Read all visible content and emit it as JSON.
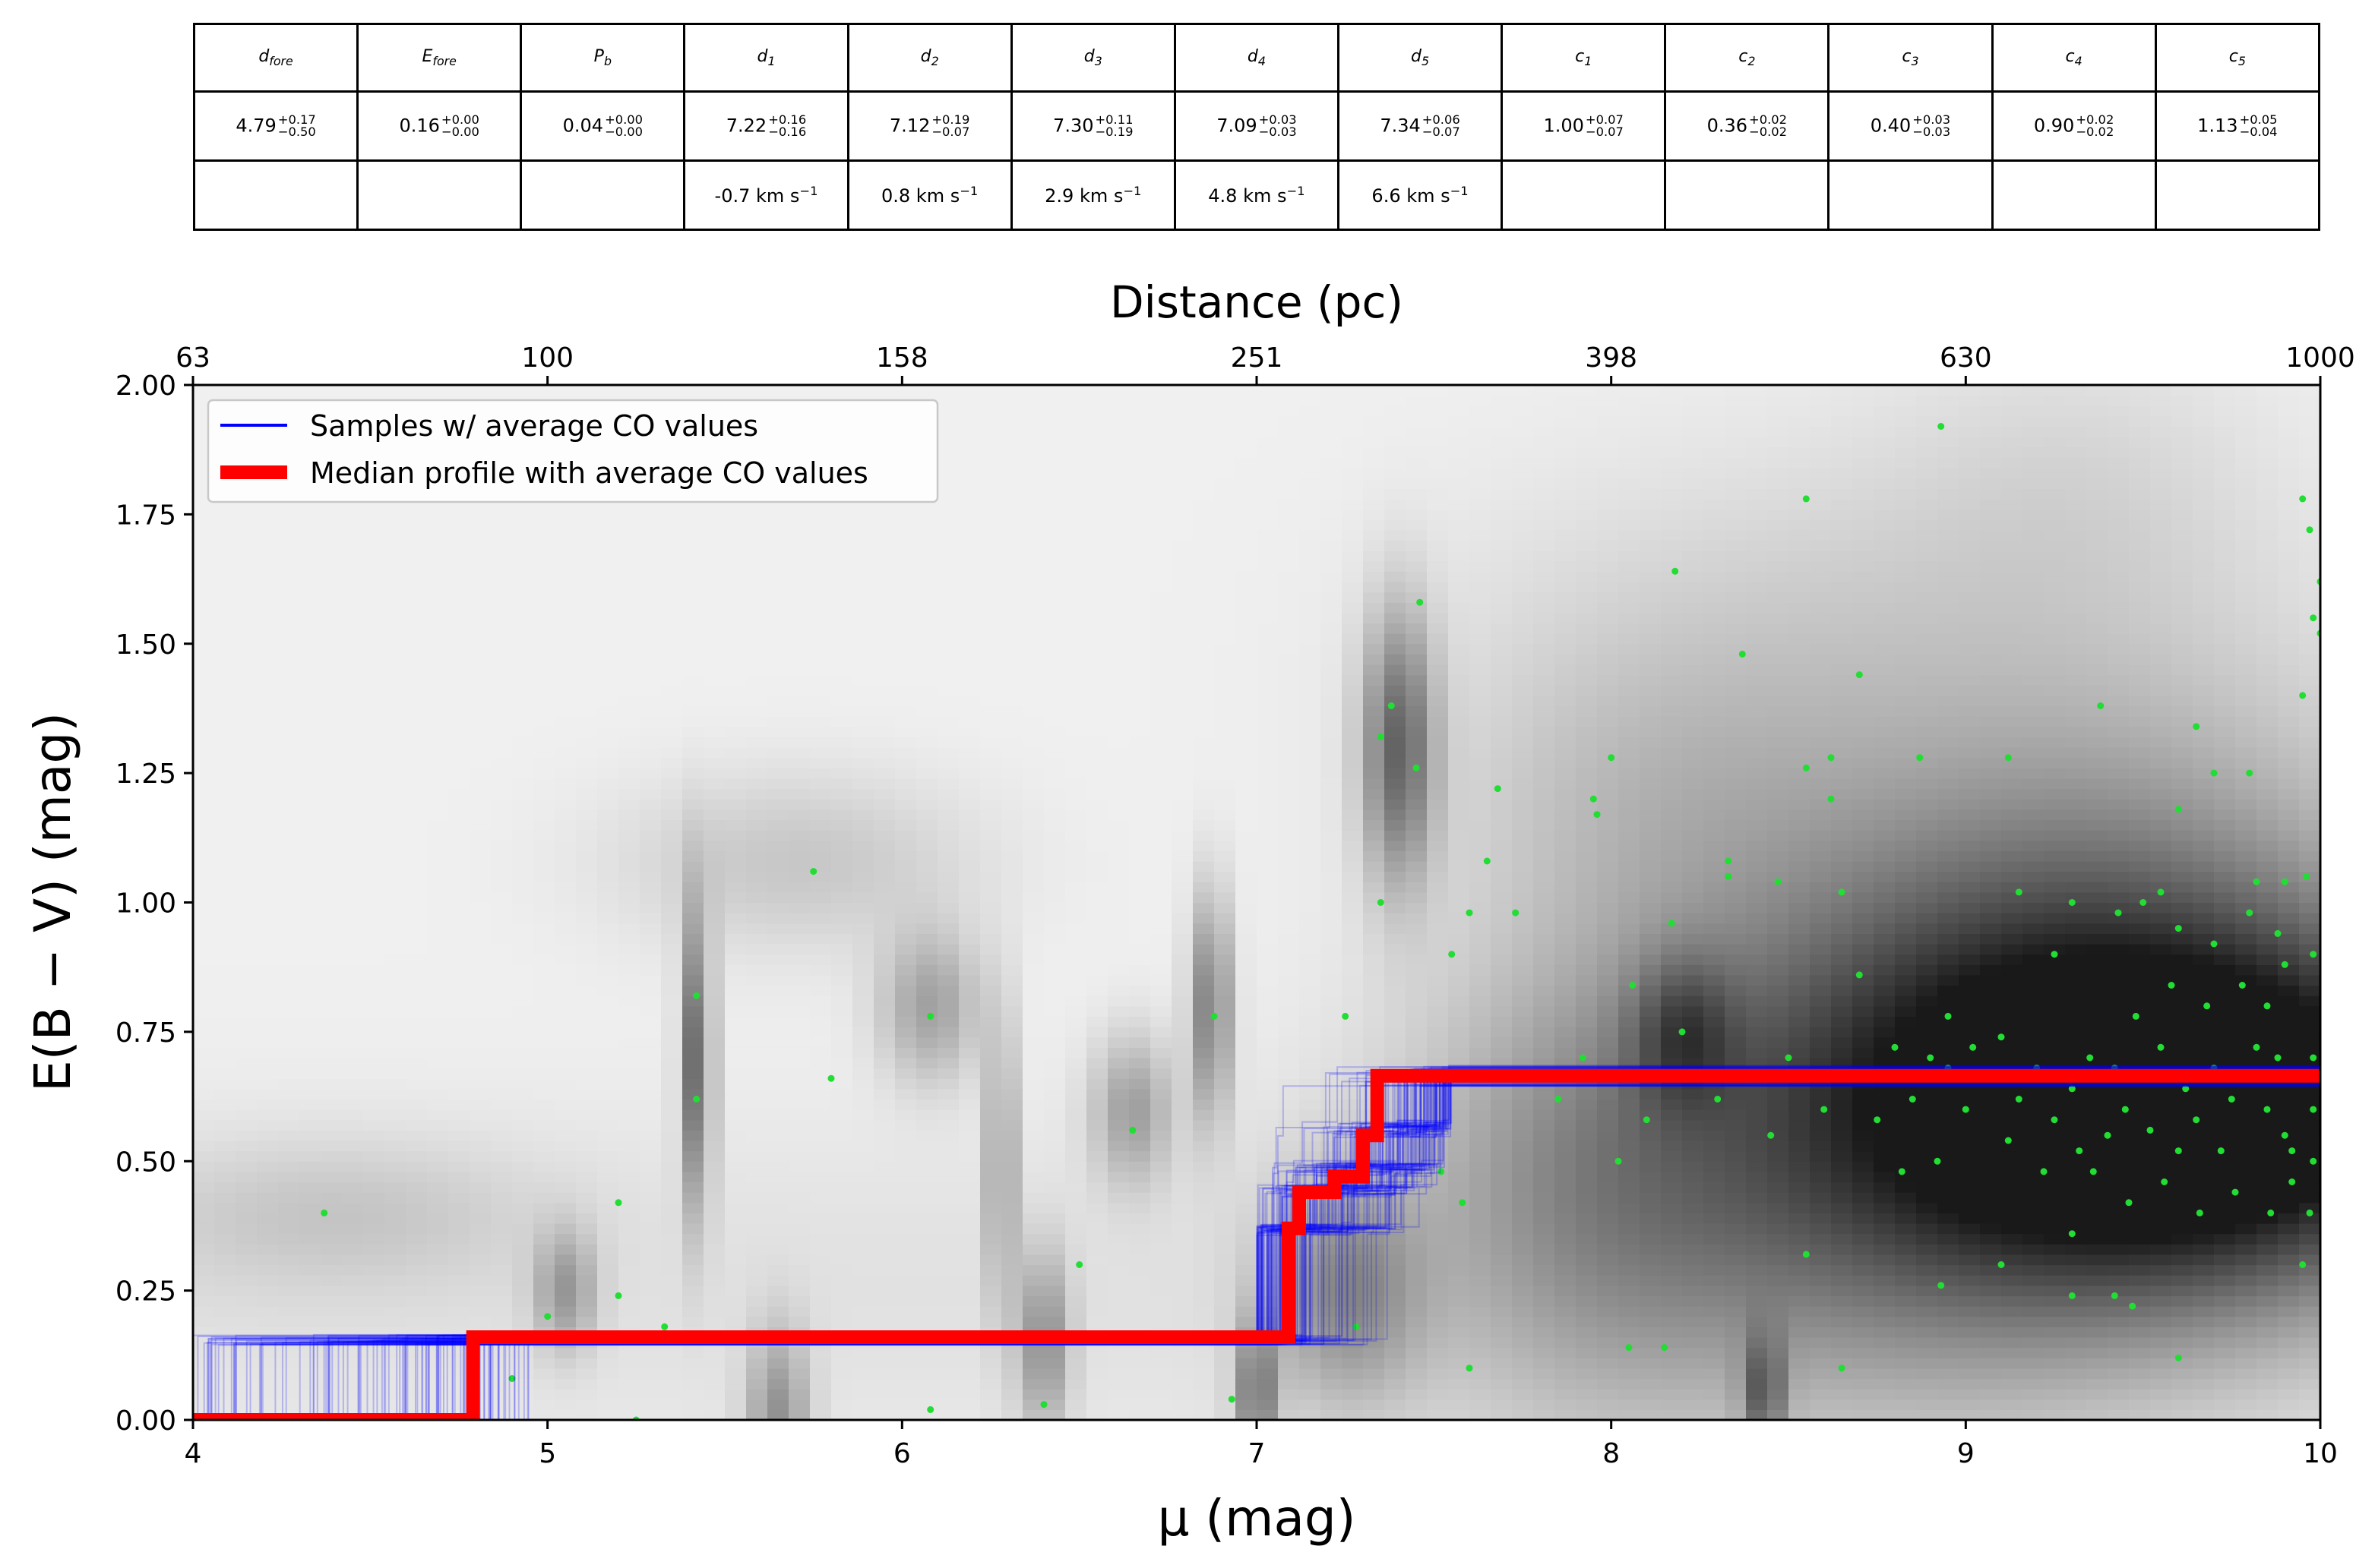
{
  "table": {
    "headers": [
      {
        "base": "d",
        "sub": "fore"
      },
      {
        "base": "E",
        "sub": "fore"
      },
      {
        "base": "P",
        "sub": "b"
      },
      {
        "base": "d",
        "sub": "1"
      },
      {
        "base": "d",
        "sub": "2"
      },
      {
        "base": "d",
        "sub": "3"
      },
      {
        "base": "d",
        "sub": "4"
      },
      {
        "base": "d",
        "sub": "5"
      },
      {
        "base": "c",
        "sub": "1"
      },
      {
        "base": "c",
        "sub": "2"
      },
      {
        "base": "c",
        "sub": "3"
      },
      {
        "base": "c",
        "sub": "4"
      },
      {
        "base": "c",
        "sub": "5"
      }
    ],
    "values": [
      {
        "val": "4.79",
        "plus": "+0.17",
        "minus": "−0.50"
      },
      {
        "val": "0.16",
        "plus": "+0.00",
        "minus": "−0.00"
      },
      {
        "val": "0.04",
        "plus": "+0.00",
        "minus": "−0.00"
      },
      {
        "val": "7.22",
        "plus": "+0.16",
        "minus": "−0.16"
      },
      {
        "val": "7.12",
        "plus": "+0.19",
        "minus": "−0.07"
      },
      {
        "val": "7.30",
        "plus": "+0.11",
        "minus": "−0.19"
      },
      {
        "val": "7.09",
        "plus": "+0.03",
        "minus": "−0.03"
      },
      {
        "val": "7.34",
        "plus": "+0.06",
        "minus": "−0.07"
      },
      {
        "val": "1.00",
        "plus": "+0.07",
        "minus": "−0.07"
      },
      {
        "val": "0.36",
        "plus": "+0.02",
        "minus": "−0.02"
      },
      {
        "val": "0.40",
        "plus": "+0.03",
        "minus": "−0.03"
      },
      {
        "val": "0.90",
        "plus": "+0.02",
        "minus": "−0.02"
      },
      {
        "val": "1.13",
        "plus": "+0.05",
        "minus": "−0.04"
      }
    ],
    "velocities": [
      "",
      "",
      "",
      "-0.7 km s",
      "0.8 km s",
      "2.9 km s",
      "4.8 km s",
      "6.6 km s",
      "",
      "",
      "",
      "",
      ""
    ],
    "velocity_exponent": "−1"
  },
  "chart_data": {
    "type": "line",
    "title": "",
    "xlabel": "μ (mag)",
    "ylabel": "E(B − V) (mag)",
    "xlim": [
      4,
      10
    ],
    "ylim": [
      0,
      2
    ],
    "x_ticks": [
      "4",
      "5",
      "6",
      "7",
      "8",
      "9",
      "10"
    ],
    "y_ticks": [
      "0.00",
      "0.25",
      "0.50",
      "0.75",
      "1.00",
      "1.25",
      "1.50",
      "1.75",
      "2.00"
    ],
    "top_axis": {
      "label": "Distance (pc)",
      "tick_mu": [
        4,
        5,
        6,
        7,
        8,
        9,
        10
      ],
      "tick_labels": [
        "63",
        "100",
        "158",
        "251",
        "398",
        "630",
        "1000"
      ]
    },
    "legend": {
      "position": "top-left",
      "entries": [
        {
          "label": "Samples  w/ average CO values",
          "color": "#0000ff"
        },
        {
          "label": "Median profile with average CO values",
          "color": "#ff0000"
        }
      ]
    },
    "series": [
      {
        "name": "Median profile with average CO values",
        "color": "#ff0000",
        "x": [
          4.0,
          4.79,
          4.79,
          7.09,
          7.09,
          7.12,
          7.12,
          7.22,
          7.22,
          7.3,
          7.3,
          7.34,
          7.34,
          10.0
        ],
        "y": [
          0.0,
          0.0,
          0.16,
          0.16,
          0.37,
          0.37,
          0.44,
          0.44,
          0.47,
          0.47,
          0.55,
          0.55,
          0.665,
          0.665
        ]
      }
    ],
    "samples": {
      "name": "Samples  w/ average CO values",
      "color": "#0000ff",
      "d_fore_range": [
        4.0,
        4.95
      ],
      "e_fore": 0.155,
      "d_range": [
        7.0,
        7.55
      ],
      "e_final": 0.665
    },
    "density_blobs": [
      {
        "mu": 9.75,
        "e": 0.6,
        "smu": 0.55,
        "se": 0.22,
        "w": 0.95
      },
      {
        "mu": 9.2,
        "e": 0.6,
        "smu": 0.6,
        "se": 0.3,
        "w": 0.55
      },
      {
        "mu": 8.6,
        "e": 0.55,
        "smu": 0.6,
        "se": 0.35,
        "w": 0.3
      },
      {
        "mu": 9.4,
        "e": 1.0,
        "smu": 0.6,
        "se": 0.35,
        "w": 0.3
      },
      {
        "mu": 8.2,
        "e": 0.75,
        "smu": 0.1,
        "se": 0.1,
        "w": 0.35
      },
      {
        "mu": 7.95,
        "e": 0.45,
        "smu": 0.35,
        "se": 0.3,
        "w": 0.25
      },
      {
        "mu": 7.4,
        "e": 1.3,
        "smu": 0.07,
        "se": 0.18,
        "w": 0.55
      },
      {
        "mu": 7.25,
        "e": 0.25,
        "smu": 0.15,
        "se": 0.15,
        "w": 0.35
      },
      {
        "mu": 7.0,
        "e": 0.05,
        "smu": 0.04,
        "se": 0.1,
        "w": 0.45
      },
      {
        "mu": 6.87,
        "e": 0.8,
        "smu": 0.04,
        "se": 0.15,
        "w": 0.45
      },
      {
        "mu": 6.65,
        "e": 0.6,
        "smu": 0.08,
        "se": 0.1,
        "w": 0.3
      },
      {
        "mu": 6.28,
        "e": 0.5,
        "smu": 0.02,
        "se": 0.2,
        "w": 0.55
      },
      {
        "mu": 6.4,
        "e": 0.15,
        "smu": 0.05,
        "se": 0.12,
        "w": 0.35
      },
      {
        "mu": 6.08,
        "e": 0.8,
        "smu": 0.1,
        "se": 0.1,
        "w": 0.3
      },
      {
        "mu": 5.42,
        "e": 0.7,
        "smu": 0.03,
        "se": 0.2,
        "w": 0.55
      },
      {
        "mu": 5.7,
        "e": 1.08,
        "smu": 0.35,
        "se": 0.12,
        "w": 0.15
      },
      {
        "mu": 5.65,
        "e": 0.0,
        "smu": 0.06,
        "se": 0.12,
        "w": 0.35
      },
      {
        "mu": 5.05,
        "e": 0.25,
        "smu": 0.06,
        "se": 0.08,
        "w": 0.3
      },
      {
        "mu": 4.4,
        "e": 0.4,
        "smu": 0.4,
        "se": 0.1,
        "w": 0.12
      },
      {
        "mu": 8.43,
        "e": 0.05,
        "smu": 0.04,
        "se": 0.08,
        "w": 0.45
      },
      {
        "mu": 8.1,
        "e": 1.2,
        "smu": 0.4,
        "se": 0.2,
        "w": 0.12
      },
      {
        "mu": 8.4,
        "e": 1.5,
        "smu": 0.6,
        "se": 0.25,
        "w": 0.1
      },
      {
        "mu": 9.3,
        "e": 1.8,
        "smu": 0.4,
        "se": 0.2,
        "w": 0.08
      }
    ],
    "scatter_points": [
      {
        "mu": 5.75,
        "e": 1.06
      },
      {
        "mu": 5.8,
        "e": 0.66
      },
      {
        "mu": 6.08,
        "e": 0.78
      },
      {
        "mu": 5.42,
        "e": 0.82
      },
      {
        "mu": 5.42,
        "e": 0.62
      },
      {
        "mu": 4.37,
        "e": 0.4
      },
      {
        "mu": 5.2,
        "e": 0.42
      },
      {
        "mu": 5.2,
        "e": 0.24
      },
      {
        "mu": 5.0,
        "e": 0.2
      },
      {
        "mu": 5.33,
        "e": 0.18
      },
      {
        "mu": 4.9,
        "e": 0.08
      },
      {
        "mu": 5.25,
        "e": 0.0
      },
      {
        "mu": 6.5,
        "e": 0.3
      },
      {
        "mu": 6.4,
        "e": 0.03
      },
      {
        "mu": 6.08,
        "e": 0.02
      },
      {
        "mu": 6.65,
        "e": 0.56
      },
      {
        "mu": 6.88,
        "e": 0.78
      },
      {
        "mu": 6.93,
        "e": 0.04
      },
      {
        "mu": 7.25,
        "e": 0.78
      },
      {
        "mu": 7.35,
        "e": 1.32
      },
      {
        "mu": 7.38,
        "e": 1.38
      },
      {
        "mu": 7.46,
        "e": 1.58
      },
      {
        "mu": 7.45,
        "e": 1.26
      },
      {
        "mu": 7.35,
        "e": 1.0
      },
      {
        "mu": 7.68,
        "e": 1.22
      },
      {
        "mu": 7.65,
        "e": 1.08
      },
      {
        "mu": 7.55,
        "e": 0.9
      },
      {
        "mu": 7.73,
        "e": 0.98
      },
      {
        "mu": 7.6,
        "e": 0.98
      },
      {
        "mu": 7.52,
        "e": 0.48
      },
      {
        "mu": 7.58,
        "e": 0.42
      },
      {
        "mu": 7.28,
        "e": 0.18
      },
      {
        "mu": 7.6,
        "e": 0.1
      },
      {
        "mu": 8.0,
        "e": 1.28
      },
      {
        "mu": 7.95,
        "e": 1.2
      },
      {
        "mu": 7.96,
        "e": 1.17
      },
      {
        "mu": 8.06,
        "e": 0.84
      },
      {
        "mu": 8.18,
        "e": 1.64
      },
      {
        "mu": 8.17,
        "e": 0.96
      },
      {
        "mu": 8.2,
        "e": 0.75
      },
      {
        "mu": 8.37,
        "e": 1.48
      },
      {
        "mu": 8.33,
        "e": 1.08
      },
      {
        "mu": 8.33,
        "e": 1.05
      },
      {
        "mu": 8.47,
        "e": 1.04
      },
      {
        "mu": 8.55,
        "e": 1.78
      },
      {
        "mu": 8.55,
        "e": 1.26
      },
      {
        "mu": 8.62,
        "e": 1.28
      },
      {
        "mu": 8.62,
        "e": 1.2
      },
      {
        "mu": 8.7,
        "e": 1.44
      },
      {
        "mu": 8.65,
        "e": 1.02
      },
      {
        "mu": 8.7,
        "e": 0.86
      },
      {
        "mu": 8.87,
        "e": 1.28
      },
      {
        "mu": 8.93,
        "e": 1.92
      },
      {
        "mu": 8.95,
        "e": 0.78
      },
      {
        "mu": 8.9,
        "e": 0.7
      },
      {
        "mu": 8.05,
        "e": 0.14
      },
      {
        "mu": 8.15,
        "e": 0.14
      },
      {
        "mu": 8.55,
        "e": 0.32
      },
      {
        "mu": 8.65,
        "e": 0.1
      },
      {
        "mu": 8.93,
        "e": 0.26
      },
      {
        "mu": 9.12,
        "e": 1.28
      },
      {
        "mu": 9.15,
        "e": 1.02
      },
      {
        "mu": 9.25,
        "e": 0.9
      },
      {
        "mu": 9.3,
        "e": 1.0
      },
      {
        "mu": 9.38,
        "e": 1.38
      },
      {
        "mu": 9.43,
        "e": 0.98
      },
      {
        "mu": 9.5,
        "e": 1.0
      },
      {
        "mu": 9.55,
        "e": 1.02
      },
      {
        "mu": 9.6,
        "e": 1.18
      },
      {
        "mu": 9.65,
        "e": 1.34
      },
      {
        "mu": 9.7,
        "e": 1.25
      },
      {
        "mu": 9.8,
        "e": 1.25
      },
      {
        "mu": 9.82,
        "e": 1.04
      },
      {
        "mu": 9.9,
        "e": 1.04
      },
      {
        "mu": 9.95,
        "e": 1.4
      },
      {
        "mu": 9.97,
        "e": 1.72
      },
      {
        "mu": 9.95,
        "e": 1.78
      },
      {
        "mu": 9.98,
        "e": 1.55
      },
      {
        "mu": 10.0,
        "e": 1.62
      },
      {
        "mu": 10.0,
        "e": 1.52
      },
      {
        "mu": 9.9,
        "e": 0.88
      },
      {
        "mu": 9.97,
        "e": 0.4
      },
      {
        "mu": 9.95,
        "e": 0.3
      },
      {
        "mu": 9.6,
        "e": 0.12
      },
      {
        "mu": 9.3,
        "e": 0.24
      },
      {
        "mu": 9.42,
        "e": 0.24
      },
      {
        "mu": 9.47,
        "e": 0.22
      },
      {
        "mu": 9.3,
        "e": 0.36
      },
      {
        "mu": 9.1,
        "e": 0.3
      },
      {
        "mu": 9.82,
        "e": 0.72
      },
      {
        "mu": 9.85,
        "e": 0.6
      },
      {
        "mu": 9.9,
        "e": 0.55
      },
      {
        "mu": 9.92,
        "e": 0.52
      },
      {
        "mu": 9.7,
        "e": 0.68
      },
      {
        "mu": 9.75,
        "e": 0.62
      },
      {
        "mu": 9.65,
        "e": 0.58
      },
      {
        "mu": 9.6,
        "e": 0.52
      },
      {
        "mu": 9.55,
        "e": 0.72
      },
      {
        "mu": 9.5,
        "e": 0.66
      },
      {
        "mu": 9.45,
        "e": 0.6
      },
      {
        "mu": 9.4,
        "e": 0.55
      },
      {
        "mu": 9.35,
        "e": 0.7
      },
      {
        "mu": 9.3,
        "e": 0.64
      },
      {
        "mu": 9.25,
        "e": 0.58
      },
      {
        "mu": 9.2,
        "e": 0.68
      },
      {
        "mu": 9.15,
        "e": 0.62
      },
      {
        "mu": 9.1,
        "e": 0.74
      },
      {
        "mu": 9.05,
        "e": 0.66
      },
      {
        "mu": 9.0,
        "e": 0.6
      },
      {
        "mu": 8.95,
        "e": 0.68
      },
      {
        "mu": 8.85,
        "e": 0.62
      },
      {
        "mu": 8.8,
        "e": 0.72
      },
      {
        "mu": 8.75,
        "e": 0.58
      },
      {
        "mu": 8.7,
        "e": 0.66
      },
      {
        "mu": 8.6,
        "e": 0.6
      },
      {
        "mu": 8.5,
        "e": 0.7
      },
      {
        "mu": 8.45,
        "e": 0.55
      },
      {
        "mu": 8.3,
        "e": 0.62
      },
      {
        "mu": 8.1,
        "e": 0.58
      },
      {
        "mu": 8.02,
        "e": 0.5
      },
      {
        "mu": 7.92,
        "e": 0.7
      },
      {
        "mu": 7.85,
        "e": 0.62
      },
      {
        "mu": 9.85,
        "e": 0.8
      },
      {
        "mu": 9.78,
        "e": 0.84
      },
      {
        "mu": 9.68,
        "e": 0.8
      },
      {
        "mu": 9.58,
        "e": 0.84
      },
      {
        "mu": 9.48,
        "e": 0.78
      },
      {
        "mu": 9.92,
        "e": 0.46
      },
      {
        "mu": 9.86,
        "e": 0.4
      },
      {
        "mu": 9.76,
        "e": 0.44
      },
      {
        "mu": 9.66,
        "e": 0.4
      },
      {
        "mu": 9.56,
        "e": 0.46
      },
      {
        "mu": 9.46,
        "e": 0.42
      },
      {
        "mu": 9.36,
        "e": 0.48
      },
      {
        "mu": 9.98,
        "e": 0.7
      },
      {
        "mu": 9.98,
        "e": 0.6
      },
      {
        "mu": 9.98,
        "e": 0.5
      },
      {
        "mu": 9.94,
        "e": 0.66
      },
      {
        "mu": 9.88,
        "e": 0.7
      },
      {
        "mu": 9.72,
        "e": 0.52
      },
      {
        "mu": 9.62,
        "e": 0.64
      },
      {
        "mu": 9.52,
        "e": 0.56
      },
      {
        "mu": 9.42,
        "e": 0.68
      },
      {
        "mu": 9.32,
        "e": 0.52
      },
      {
        "mu": 9.22,
        "e": 0.48
      },
      {
        "mu": 9.12,
        "e": 0.54
      },
      {
        "mu": 9.02,
        "e": 0.72
      },
      {
        "mu": 8.92,
        "e": 0.5
      },
      {
        "mu": 8.82,
        "e": 0.48
      },
      {
        "mu": 9.6,
        "e": 0.95
      },
      {
        "mu": 9.7,
        "e": 0.92
      },
      {
        "mu": 9.8,
        "e": 0.98
      },
      {
        "mu": 9.88,
        "e": 0.94
      },
      {
        "mu": 9.98,
        "e": 0.9
      },
      {
        "mu": 9.96,
        "e": 1.05
      }
    ]
  }
}
